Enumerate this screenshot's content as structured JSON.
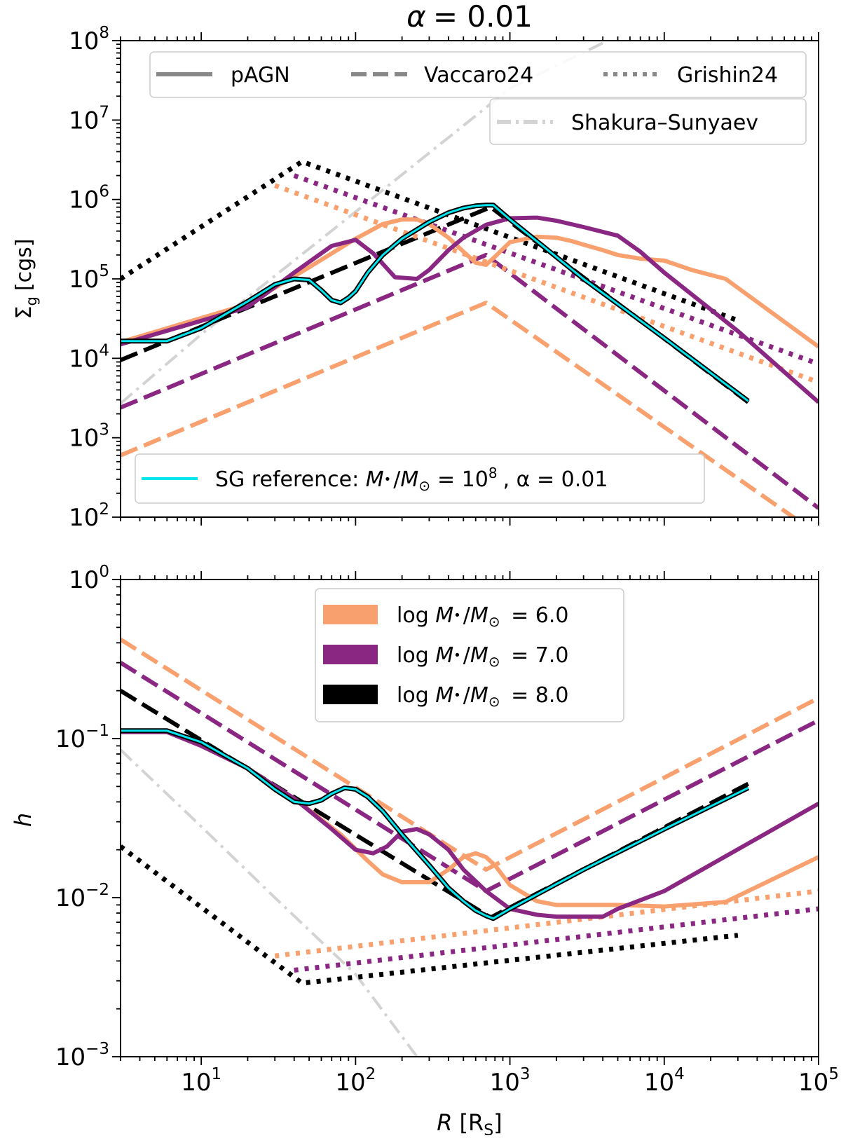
{
  "chart_data": [
    {
      "type": "line",
      "title": "α = 0.01",
      "title_prefix": "α",
      "title_value": "= 0.01",
      "xlabel": "",
      "ylabel_symbol": "Σ",
      "ylabel_sub": "g",
      "ylabel_unit": "[cgs]",
      "xscale": "log",
      "yscale": "log",
      "xlim": [
        3,
        100000
      ],
      "ylim": [
        100,
        100000000
      ],
      "x_tick_exponents": [
        1,
        2,
        3,
        4,
        5
      ],
      "y_tick_exponents": [
        2,
        3,
        4,
        5,
        6,
        7,
        8
      ],
      "tick_base": "10",
      "grid": false,
      "style_legend": {
        "placement": "top",
        "entries": [
          {
            "label": "pAGN",
            "style": "solid"
          },
          {
            "label": "Vaccaro24",
            "style": "dashed"
          },
          {
            "label": "Grishin24",
            "style": "dotted"
          }
        ]
      },
      "ss_legend": {
        "placement": "top-right",
        "label": "Shakura–Sunyaev",
        "style": "dashdot"
      },
      "sg_legend": {
        "placement": "lower-left",
        "text": "SG reference: ",
        "m_sym": "M",
        "bullet": "•",
        "slash": "/",
        "msun_sym": "M",
        "sun_sub": "⊙",
        "eq_text": "= 10",
        "exp": "8",
        "alpha_text": ", α = 0.01"
      },
      "series": [
        {
          "model": "pAGN",
          "mass_log": 6,
          "color": "#f9a06f",
          "style": "solid",
          "x": [
            3,
            20,
            50,
            100,
            150,
            200,
            250,
            300,
            400,
            500,
            600,
            700,
            800,
            1000,
            1500,
            2000,
            2500,
            3000,
            4000,
            5000,
            7000,
            10000,
            15000,
            25000,
            100000
          ],
          "y": [
            16000,
            48000,
            140000,
            320000,
            490000,
            560000,
            560000,
            490000,
            330000,
            220000,
            160000,
            150000,
            190000,
            290000,
            340000,
            330000,
            300000,
            270000,
            230000,
            200000,
            180000,
            170000,
            130000,
            100000,
            14000
          ]
        },
        {
          "model": "pAGN",
          "mass_log": 7,
          "color": "#8a2783",
          "style": "solid",
          "x": [
            3,
            20,
            40,
            70,
            100,
            130,
            180,
            250,
            300,
            400,
            500,
            700,
            1000,
            1500,
            2000,
            3000,
            5000,
            7000,
            10000,
            30000,
            100000
          ],
          "y": [
            15000,
            44000,
            120000,
            260000,
            310000,
            210000,
            105000,
            100000,
            130000,
            230000,
            330000,
            480000,
            580000,
            590000,
            540000,
            450000,
            350000,
            220000,
            120000,
            22000,
            2800
          ]
        },
        {
          "model": "pAGN",
          "mass_log": 8,
          "color": "#000000",
          "style": "solid",
          "x": [
            3,
            6,
            10,
            20,
            30,
            40,
            50,
            60,
            70,
            80,
            90,
            100,
            120,
            150,
            200,
            300,
            400,
            500,
            600,
            700,
            780,
            1000,
            3000,
            10000,
            35000
          ],
          "y": [
            16500,
            16500,
            24000,
            52000,
            85000,
            100000,
            97000,
            72000,
            54000,
            50000,
            58000,
            70000,
            120000,
            200000,
            320000,
            520000,
            680000,
            780000,
            830000,
            850000,
            850000,
            560000,
            100000,
            18000,
            2900
          ]
        },
        {
          "model": "SG reference",
          "color": "#00e5ee",
          "style": "solid",
          "x": [
            3,
            6,
            10,
            20,
            30,
            40,
            50,
            60,
            70,
            80,
            90,
            100,
            120,
            150,
            200,
            300,
            400,
            500,
            600,
            700,
            780,
            1000,
            3000,
            10000,
            35000
          ],
          "y": [
            16500,
            16500,
            24000,
            52000,
            85000,
            100000,
            97000,
            72000,
            54000,
            50000,
            58000,
            70000,
            120000,
            200000,
            320000,
            520000,
            680000,
            780000,
            830000,
            850000,
            850000,
            560000,
            100000,
            18000,
            2900
          ]
        },
        {
          "model": "Vaccaro24",
          "mass_log": 6,
          "color": "#f9a06f",
          "style": "dashed",
          "x": [
            3,
            700,
            100000
          ],
          "y": [
            600,
            50000,
            60
          ]
        },
        {
          "model": "Vaccaro24",
          "mass_log": 7,
          "color": "#8a2783",
          "style": "dashed",
          "x": [
            3,
            700,
            100000
          ],
          "y": [
            2400,
            200000,
            130
          ]
        },
        {
          "model": "Vaccaro24",
          "mass_log": 8,
          "color": "#000000",
          "style": "dashed",
          "x": [
            3,
            750,
            35000
          ],
          "y": [
            9500,
            800000,
            2800
          ]
        },
        {
          "model": "Grishin24",
          "mass_log": 6,
          "color": "#f9a06f",
          "style": "dotted",
          "x": [
            30,
            100000
          ],
          "y": [
            1500000,
            5000
          ]
        },
        {
          "model": "Grishin24",
          "mass_log": 7,
          "color": "#8a2783",
          "style": "dotted",
          "x": [
            40,
            100000
          ],
          "y": [
            2000000,
            8500
          ]
        },
        {
          "model": "Grishin24",
          "mass_log": 8,
          "color": "#000000",
          "style": "dotted",
          "x": [
            3,
            45,
            30000
          ],
          "y": [
            100000,
            3000000,
            30000
          ]
        },
        {
          "model": "Shakura–Sunyaev",
          "color": "#d3d3d3",
          "style": "dashdot",
          "x": [
            3,
            10,
            100,
            1000,
            4300
          ],
          "y": [
            2700,
            20000,
            700000,
            25000000,
            100000000
          ]
        }
      ]
    },
    {
      "type": "line",
      "title": "",
      "xlabel_prefix": "R",
      "xlabel_unit": "[R",
      "xlabel_sub": "S",
      "xlabel_close": "]",
      "ylabel": "h",
      "xscale": "log",
      "yscale": "log",
      "xlim": [
        3,
        100000
      ],
      "ylim": [
        0.001,
        1
      ],
      "x_tick_exponents": [
        1,
        2,
        3,
        4,
        5
      ],
      "y_tick_exponents": [
        -3,
        -2,
        -1,
        0
      ],
      "tick_base": "10",
      "grid": false,
      "legend": {
        "placement": "top-center",
        "entries": [
          {
            "prefix": "log ",
            "m_sym": "M",
            "bullet": "•",
            "slash": "/",
            "msun_sym": "M",
            "sun_sub": "⊙",
            "value": " = 6.0",
            "color": "#f9a06f"
          },
          {
            "prefix": "log ",
            "m_sym": "M",
            "bullet": "•",
            "slash": "/",
            "msun_sym": "M",
            "sun_sub": "⊙",
            "value": " = 7.0",
            "color": "#8a2783"
          },
          {
            "prefix": "log ",
            "m_sym": "M",
            "bullet": "•",
            "slash": "/",
            "msun_sym": "M",
            "sun_sub": "⊙",
            "value": " = 8.0",
            "color": "#000000"
          }
        ]
      },
      "series": [
        {
          "model": "pAGN",
          "mass_log": 6,
          "color": "#f9a06f",
          "style": "solid",
          "x": [
            3,
            6,
            10,
            20,
            40,
            80,
            120,
            150,
            200,
            300,
            400,
            500,
            600,
            700,
            800,
            1000,
            1500,
            2000,
            3000,
            5000,
            10000,
            25000,
            100000
          ],
          "y": [
            0.11,
            0.11,
            0.09,
            0.065,
            0.042,
            0.025,
            0.017,
            0.014,
            0.0125,
            0.0125,
            0.015,
            0.018,
            0.019,
            0.018,
            0.016,
            0.012,
            0.0095,
            0.009,
            0.009,
            0.009,
            0.0088,
            0.0094,
            0.018
          ]
        },
        {
          "model": "pAGN",
          "mass_log": 7,
          "color": "#8a2783",
          "style": "solid",
          "x": [
            3,
            6,
            10,
            20,
            40,
            70,
            100,
            130,
            160,
            200,
            250,
            300,
            400,
            500,
            700,
            1000,
            1500,
            2000,
            4000,
            5000,
            10000,
            100000
          ],
          "y": [
            0.11,
            0.11,
            0.09,
            0.065,
            0.042,
            0.027,
            0.02,
            0.019,
            0.021,
            0.026,
            0.027,
            0.025,
            0.02,
            0.015,
            0.011,
            0.0085,
            0.0078,
            0.0076,
            0.0076,
            0.0085,
            0.011,
            0.039
          ]
        },
        {
          "model": "pAGN",
          "mass_log": 8,
          "color": "#000000",
          "style": "solid",
          "x": [
            3,
            6,
            10,
            20,
            30,
            40,
            50,
            60,
            70,
            85,
            100,
            120,
            150,
            200,
            300,
            400,
            500,
            600,
            700,
            780,
            1000,
            3000,
            10000,
            35000
          ],
          "y": [
            0.112,
            0.112,
            0.095,
            0.065,
            0.048,
            0.04,
            0.039,
            0.041,
            0.045,
            0.049,
            0.048,
            0.043,
            0.035,
            0.025,
            0.016,
            0.0115,
            0.0095,
            0.0083,
            0.0077,
            0.0074,
            0.0085,
            0.015,
            0.027,
            0.049
          ]
        },
        {
          "model": "SG reference",
          "color": "#00e5ee",
          "style": "solid",
          "x": [
            3,
            6,
            10,
            20,
            30,
            40,
            50,
            60,
            70,
            85,
            100,
            120,
            150,
            200,
            300,
            400,
            500,
            600,
            700,
            780,
            1000,
            3000,
            10000,
            35000
          ],
          "y": [
            0.112,
            0.112,
            0.095,
            0.065,
            0.048,
            0.04,
            0.039,
            0.041,
            0.045,
            0.049,
            0.048,
            0.043,
            0.035,
            0.025,
            0.016,
            0.0115,
            0.0095,
            0.0083,
            0.0077,
            0.0074,
            0.0085,
            0.015,
            0.027,
            0.049
          ]
        },
        {
          "model": "Vaccaro24",
          "mass_log": 6,
          "color": "#f9a06f",
          "style": "dashed",
          "x": [
            3,
            700,
            100000
          ],
          "y": [
            0.42,
            0.015,
            0.18
          ]
        },
        {
          "model": "Vaccaro24",
          "mass_log": 7,
          "color": "#8a2783",
          "style": "dashed",
          "x": [
            3,
            700,
            100000
          ],
          "y": [
            0.3,
            0.011,
            0.13
          ]
        },
        {
          "model": "Vaccaro24",
          "mass_log": 8,
          "color": "#000000",
          "style": "dashed",
          "x": [
            3,
            750,
            35000
          ],
          "y": [
            0.2,
            0.0075,
            0.052
          ]
        },
        {
          "model": "Grishin24",
          "mass_log": 6,
          "color": "#f9a06f",
          "style": "dotted",
          "x": [
            30,
            100000
          ],
          "y": [
            0.0043,
            0.011
          ]
        },
        {
          "model": "Grishin24",
          "mass_log": 7,
          "color": "#8a2783",
          "style": "dotted",
          "x": [
            40,
            100000
          ],
          "y": [
            0.0035,
            0.0085
          ]
        },
        {
          "model": "Grishin24",
          "mass_log": 8,
          "color": "#000000",
          "style": "dotted",
          "x": [
            3,
            45,
            30000
          ],
          "y": [
            0.021,
            0.0029,
            0.0058
          ]
        },
        {
          "model": "Shakura–Sunyaev",
          "color": "#d3d3d3",
          "style": "dashdot",
          "x": [
            3,
            10,
            30,
            100,
            250
          ],
          "y": [
            0.085,
            0.028,
            0.01,
            0.0033,
            0.001
          ]
        }
      ]
    }
  ]
}
